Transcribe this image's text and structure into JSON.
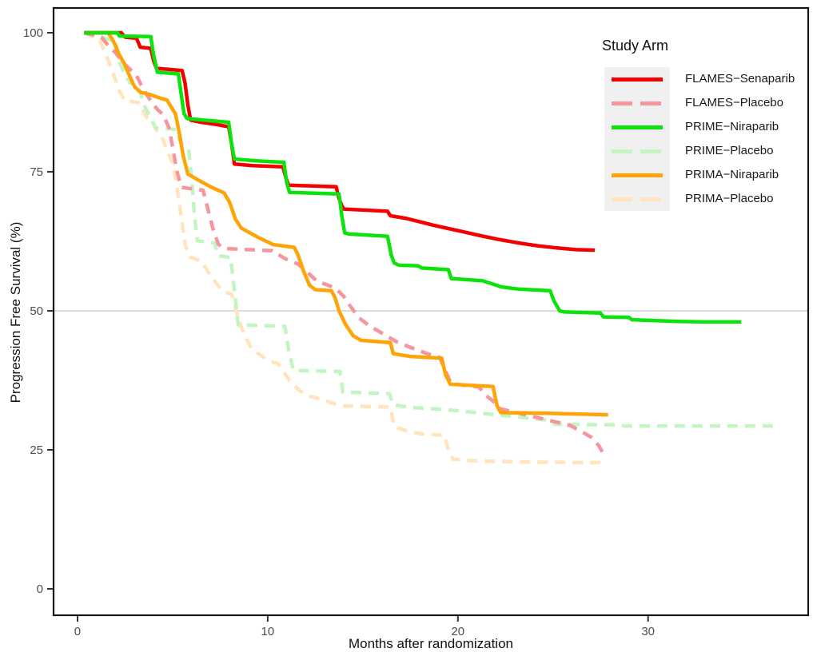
{
  "chart_data": {
    "type": "line",
    "subtype": "kaplan-meier-step-survival",
    "title": "",
    "xlabel": "Months after randomization",
    "ylabel": "Progression Free Survival (%)",
    "x_ticks": [
      0,
      10,
      20,
      30
    ],
    "y_ticks": [
      0,
      25,
      50,
      75,
      100
    ],
    "xlim": [
      -1.26,
      38.42
    ],
    "ylim": [
      -4.74,
      104.45
    ],
    "grid": "single horizontal reference line at y=50",
    "gridline_y": 50,
    "legend_title": "Study Arm",
    "legend_position": "inside top-right",
    "series": [
      {
        "name": "FLAMES−Senaparib",
        "color": "#f30000",
        "dash": false,
        "z": 5,
        "points": [
          [
            0.35,
            100
          ],
          [
            2.3,
            100
          ],
          [
            2.5,
            99.2
          ],
          [
            3.1,
            99.0
          ],
          [
            3.3,
            97.4
          ],
          [
            3.85,
            97.2
          ],
          [
            4.0,
            95.0
          ],
          [
            4.15,
            93.6
          ],
          [
            5.5,
            93.2
          ],
          [
            5.65,
            91.0
          ],
          [
            5.8,
            87.0
          ],
          [
            5.95,
            84.3
          ],
          [
            6.5,
            83.9
          ],
          [
            7.3,
            83.5
          ],
          [
            7.95,
            83.1
          ],
          [
            8.1,
            80.0
          ],
          [
            8.25,
            76.4
          ],
          [
            9.2,
            76.1
          ],
          [
            10.8,
            75.9
          ],
          [
            10.95,
            74.0
          ],
          [
            11.1,
            72.6
          ],
          [
            13.6,
            72.3
          ],
          [
            13.75,
            70.2
          ],
          [
            13.9,
            68.9
          ],
          [
            14.0,
            68.3
          ],
          [
            16.3,
            67.9
          ],
          [
            16.45,
            67.1
          ],
          [
            17.3,
            66.6
          ],
          [
            18.0,
            66.0
          ],
          [
            18.7,
            65.4
          ],
          [
            19.5,
            64.8
          ],
          [
            20.3,
            64.2
          ],
          [
            21.2,
            63.5
          ],
          [
            22.2,
            62.8
          ],
          [
            23.2,
            62.2
          ],
          [
            24.2,
            61.7
          ],
          [
            25.2,
            61.3
          ],
          [
            26.2,
            61.0
          ],
          [
            27.2,
            60.9
          ]
        ]
      },
      {
        "name": "FLAMES−Placebo",
        "color": "#f4969c",
        "dash": true,
        "z": 3,
        "points": [
          [
            0.35,
            100
          ],
          [
            1.25,
            99.2
          ],
          [
            1.6,
            97.8
          ],
          [
            2.0,
            96.4
          ],
          [
            2.4,
            94.6
          ],
          [
            2.8,
            93.3
          ],
          [
            3.1,
            92.3
          ],
          [
            3.5,
            89.6
          ],
          [
            3.9,
            87.5
          ],
          [
            4.2,
            86.2
          ],
          [
            4.5,
            85.3
          ],
          [
            4.8,
            83.0
          ],
          [
            5.0,
            79.5
          ],
          [
            5.2,
            75.5
          ],
          [
            5.45,
            72.2
          ],
          [
            6.6,
            71.7
          ],
          [
            6.8,
            69.0
          ],
          [
            7.1,
            65.0
          ],
          [
            7.4,
            62.0
          ],
          [
            7.7,
            61.2
          ],
          [
            10.25,
            60.8
          ],
          [
            10.9,
            59.4
          ],
          [
            11.6,
            58.4
          ],
          [
            12.1,
            56.9
          ],
          [
            12.6,
            55.3
          ],
          [
            13.1,
            54.7
          ],
          [
            13.55,
            54.1
          ],
          [
            14.0,
            52.6
          ],
          [
            14.35,
            50.8
          ],
          [
            14.8,
            48.7
          ],
          [
            15.4,
            47.2
          ],
          [
            16.1,
            45.8
          ],
          [
            16.8,
            44.4
          ],
          [
            17.6,
            43.3
          ],
          [
            18.3,
            42.4
          ],
          [
            19.05,
            41.6
          ],
          [
            19.3,
            39.5
          ],
          [
            19.65,
            36.9
          ],
          [
            21.1,
            36.3
          ],
          [
            21.5,
            34.7
          ],
          [
            21.95,
            33.5
          ],
          [
            22.2,
            32.4
          ],
          [
            23.2,
            31.6
          ],
          [
            24.3,
            30.7
          ],
          [
            25.3,
            29.9
          ],
          [
            25.9,
            29.4
          ],
          [
            26.5,
            28.3
          ],
          [
            27.0,
            27.3
          ],
          [
            27.4,
            25.8
          ],
          [
            27.6,
            24.6
          ],
          [
            27.95,
            24.2
          ]
        ]
      },
      {
        "name": "PRIME−Niraparib",
        "color": "#0ce30c",
        "dash": false,
        "z": 6,
        "points": [
          [
            0.35,
            100
          ],
          [
            2.1,
            100
          ],
          [
            2.2,
            99.4
          ],
          [
            3.85,
            99.3
          ],
          [
            4.0,
            96.0
          ],
          [
            4.2,
            92.9
          ],
          [
            5.3,
            92.6
          ],
          [
            5.45,
            89.0
          ],
          [
            5.6,
            85.5
          ],
          [
            5.75,
            84.6
          ],
          [
            6.6,
            84.3
          ],
          [
            7.95,
            83.9
          ],
          [
            8.1,
            80.0
          ],
          [
            8.25,
            77.3
          ],
          [
            9.3,
            77.0
          ],
          [
            10.85,
            76.7
          ],
          [
            11.0,
            73.0
          ],
          [
            11.15,
            71.3
          ],
          [
            13.75,
            71.0
          ],
          [
            13.9,
            67.0
          ],
          [
            14.05,
            64.0
          ],
          [
            14.3,
            63.8
          ],
          [
            16.3,
            63.4
          ],
          [
            16.5,
            60.0
          ],
          [
            16.65,
            58.6
          ],
          [
            16.9,
            58.2
          ],
          [
            17.9,
            58.1
          ],
          [
            18.1,
            57.7
          ],
          [
            19.5,
            57.4
          ],
          [
            19.65,
            55.8
          ],
          [
            21.3,
            55.4
          ],
          [
            22.3,
            54.3
          ],
          [
            23.2,
            53.9
          ],
          [
            24.85,
            53.6
          ],
          [
            25.05,
            51.8
          ],
          [
            25.35,
            50.0
          ],
          [
            25.6,
            49.8
          ],
          [
            27.5,
            49.6
          ],
          [
            27.65,
            48.9
          ],
          [
            29.0,
            48.8
          ],
          [
            29.15,
            48.4
          ],
          [
            31.5,
            48.1
          ],
          [
            33.0,
            48.0
          ],
          [
            34.9,
            48.0
          ]
        ]
      },
      {
        "name": "PRIME−Placebo",
        "color": "#c3f5c3",
        "dash": true,
        "z": 2,
        "points": [
          [
            0.35,
            100
          ],
          [
            1.9,
            98.6
          ],
          [
            2.1,
            95.5
          ],
          [
            2.4,
            93.2
          ],
          [
            2.75,
            91.0
          ],
          [
            3.2,
            90.4
          ],
          [
            3.5,
            87.0
          ],
          [
            3.8,
            85.0
          ],
          [
            4.1,
            82.9
          ],
          [
            5.2,
            82.6
          ],
          [
            5.4,
            80.3
          ],
          [
            5.85,
            78.8
          ],
          [
            6.0,
            74.0
          ],
          [
            6.15,
            67.0
          ],
          [
            6.3,
            62.6
          ],
          [
            7.2,
            62.2
          ],
          [
            7.4,
            59.9
          ],
          [
            8.05,
            59.6
          ],
          [
            8.2,
            55.0
          ],
          [
            8.45,
            47.5
          ],
          [
            10.9,
            47.2
          ],
          [
            11.1,
            43.0
          ],
          [
            11.35,
            39.3
          ],
          [
            13.8,
            39.1
          ],
          [
            13.95,
            35.4
          ],
          [
            16.4,
            35.1
          ],
          [
            16.6,
            33.1
          ],
          [
            17.6,
            32.6
          ],
          [
            19.5,
            32.2
          ],
          [
            21.5,
            31.5
          ],
          [
            23.5,
            30.8
          ],
          [
            24.9,
            30.3
          ],
          [
            25.1,
            29.6
          ],
          [
            28.6,
            29.5
          ],
          [
            28.75,
            29.3
          ],
          [
            36.6,
            29.3
          ]
        ]
      },
      {
        "name": "PRIMA−Niraparib",
        "color": "#ffa408",
        "dash": false,
        "z": 4,
        "points": [
          [
            0.35,
            100
          ],
          [
            1.6,
            100
          ],
          [
            1.8,
            99.0
          ],
          [
            2.0,
            97.7
          ],
          [
            2.2,
            96.0
          ],
          [
            2.45,
            94.5
          ],
          [
            2.7,
            92.5
          ],
          [
            3.0,
            90.3
          ],
          [
            3.3,
            89.3
          ],
          [
            3.8,
            88.9
          ],
          [
            4.3,
            88.3
          ],
          [
            4.7,
            87.9
          ],
          [
            4.95,
            86.5
          ],
          [
            5.15,
            85.4
          ],
          [
            5.35,
            82.0
          ],
          [
            5.55,
            78.0
          ],
          [
            5.8,
            74.6
          ],
          [
            6.3,
            73.6
          ],
          [
            7.0,
            72.3
          ],
          [
            7.7,
            71.2
          ],
          [
            8.0,
            69.5
          ],
          [
            8.3,
            66.5
          ],
          [
            8.6,
            64.9
          ],
          [
            9.5,
            63.2
          ],
          [
            10.3,
            61.9
          ],
          [
            11.4,
            61.4
          ],
          [
            11.6,
            60.0
          ],
          [
            11.9,
            57.0
          ],
          [
            12.2,
            54.6
          ],
          [
            12.5,
            53.8
          ],
          [
            13.35,
            53.6
          ],
          [
            13.55,
            52.3
          ],
          [
            13.75,
            50.0
          ],
          [
            14.1,
            47.5
          ],
          [
            14.5,
            45.5
          ],
          [
            14.9,
            44.7
          ],
          [
            16.45,
            44.3
          ],
          [
            16.6,
            42.3
          ],
          [
            17.5,
            41.8
          ],
          [
            19.15,
            41.5
          ],
          [
            19.35,
            38.5
          ],
          [
            19.6,
            36.8
          ],
          [
            21.85,
            36.4
          ],
          [
            22.05,
            33.0
          ],
          [
            22.25,
            31.7
          ],
          [
            24.5,
            31.6
          ],
          [
            27.9,
            31.3
          ]
        ]
      },
      {
        "name": "PRIMA−Placebo",
        "color": "#ffe4be",
        "dash": true,
        "z": 1,
        "points": [
          [
            0.35,
            100
          ],
          [
            1.15,
            98.8
          ],
          [
            1.5,
            96.0
          ],
          [
            1.9,
            92.5
          ],
          [
            2.2,
            89.5
          ],
          [
            2.5,
            87.8
          ],
          [
            3.3,
            87.4
          ],
          [
            3.6,
            84.9
          ],
          [
            3.9,
            84.4
          ],
          [
            4.15,
            82.5
          ],
          [
            4.45,
            81.2
          ],
          [
            4.75,
            78.5
          ],
          [
            5.0,
            76.5
          ],
          [
            5.2,
            73.0
          ],
          [
            5.45,
            67.0
          ],
          [
            5.65,
            62.0
          ],
          [
            5.9,
            59.7
          ],
          [
            6.5,
            58.9
          ],
          [
            7.05,
            56.1
          ],
          [
            7.45,
            54.3
          ],
          [
            7.8,
            53.3
          ],
          [
            8.1,
            53.0
          ],
          [
            8.35,
            49.9
          ],
          [
            8.6,
            47.2
          ],
          [
            8.85,
            45.2
          ],
          [
            9.15,
            43.2
          ],
          [
            9.8,
            41.6
          ],
          [
            10.15,
            40.9
          ],
          [
            10.55,
            40.5
          ],
          [
            10.8,
            39.2
          ],
          [
            11.2,
            37.2
          ],
          [
            11.7,
            35.6
          ],
          [
            12.25,
            34.6
          ],
          [
            12.9,
            34.0
          ],
          [
            13.6,
            33.2
          ],
          [
            14.0,
            32.9
          ],
          [
            16.45,
            32.7
          ],
          [
            16.65,
            29.2
          ],
          [
            17.4,
            28.3
          ],
          [
            18.0,
            27.9
          ],
          [
            19.3,
            27.6
          ],
          [
            19.5,
            25.0
          ],
          [
            19.75,
            23.3
          ],
          [
            21.0,
            23.0
          ],
          [
            24.0,
            22.8
          ],
          [
            27.5,
            22.7
          ]
        ]
      }
    ]
  },
  "colors": {
    "panel_border": "#161616",
    "gridline": "#c8c8c8",
    "tick_label": "#4d4d4d",
    "axis_title": "#111111",
    "legend_key_bg": "#f0f0f0",
    "background": "#ffffff"
  }
}
